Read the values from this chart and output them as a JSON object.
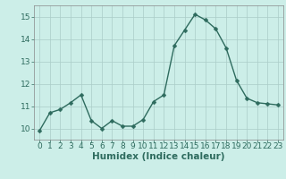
{
  "x": [
    0,
    1,
    2,
    3,
    4,
    5,
    6,
    7,
    8,
    9,
    10,
    11,
    12,
    13,
    14,
    15,
    16,
    17,
    18,
    19,
    20,
    21,
    22,
    23
  ],
  "y": [
    9.9,
    10.7,
    10.85,
    11.15,
    11.5,
    10.35,
    10.0,
    10.35,
    10.1,
    10.1,
    10.4,
    11.2,
    11.5,
    13.7,
    14.4,
    15.1,
    14.85,
    14.45,
    13.6,
    12.15,
    11.35,
    11.15,
    11.1,
    11.05
  ],
  "line_color": "#2e6b5e",
  "marker": "D",
  "marker_size": 2.5,
  "bg_color": "#cceee8",
  "grid_color": "#aaccc8",
  "xlabel": "Humidex (Indice chaleur)",
  "xlim": [
    -0.5,
    23.5
  ],
  "ylim": [
    9.5,
    15.5
  ],
  "yticks": [
    10,
    11,
    12,
    13,
    14,
    15
  ],
  "xticks": [
    0,
    1,
    2,
    3,
    4,
    5,
    6,
    7,
    8,
    9,
    10,
    11,
    12,
    13,
    14,
    15,
    16,
    17,
    18,
    19,
    20,
    21,
    22,
    23
  ],
  "xlabel_fontsize": 7.5,
  "tick_fontsize": 6.5,
  "line_width": 1.0,
  "axis_color": "#2e6b5e",
  "spine_color": "#888888"
}
